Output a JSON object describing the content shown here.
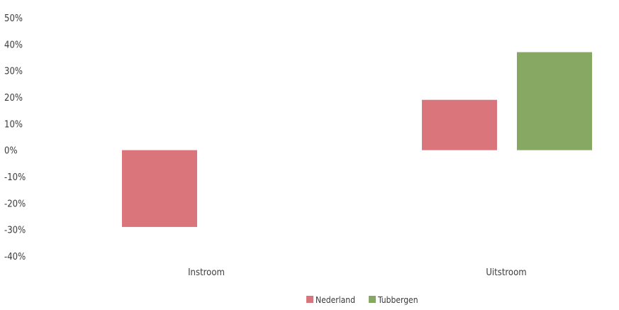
{
  "chart_data": {
    "type": "bar",
    "title": "",
    "xlabel": "",
    "ylabel": "",
    "categories": [
      "Instroom",
      "Uitstroom"
    ],
    "series": [
      {
        "name": "Nederland",
        "color": "#d9757b",
        "values": [
          -29,
          19
        ]
      },
      {
        "name": "Tubbergen",
        "color": "#86a862",
        "values": [
          null,
          37
        ]
      }
    ],
    "ylim": [
      -40,
      50
    ],
    "yticks": [
      50,
      40,
      30,
      20,
      10,
      0,
      -10,
      -20,
      -30,
      -40
    ],
    "ytick_labels": [
      "50%",
      "40%",
      "30%",
      "20%",
      "10%",
      "0%",
      "-10%",
      "-20%",
      "-30%",
      "-40%"
    ],
    "grid": false,
    "legend": "bottom-center"
  }
}
